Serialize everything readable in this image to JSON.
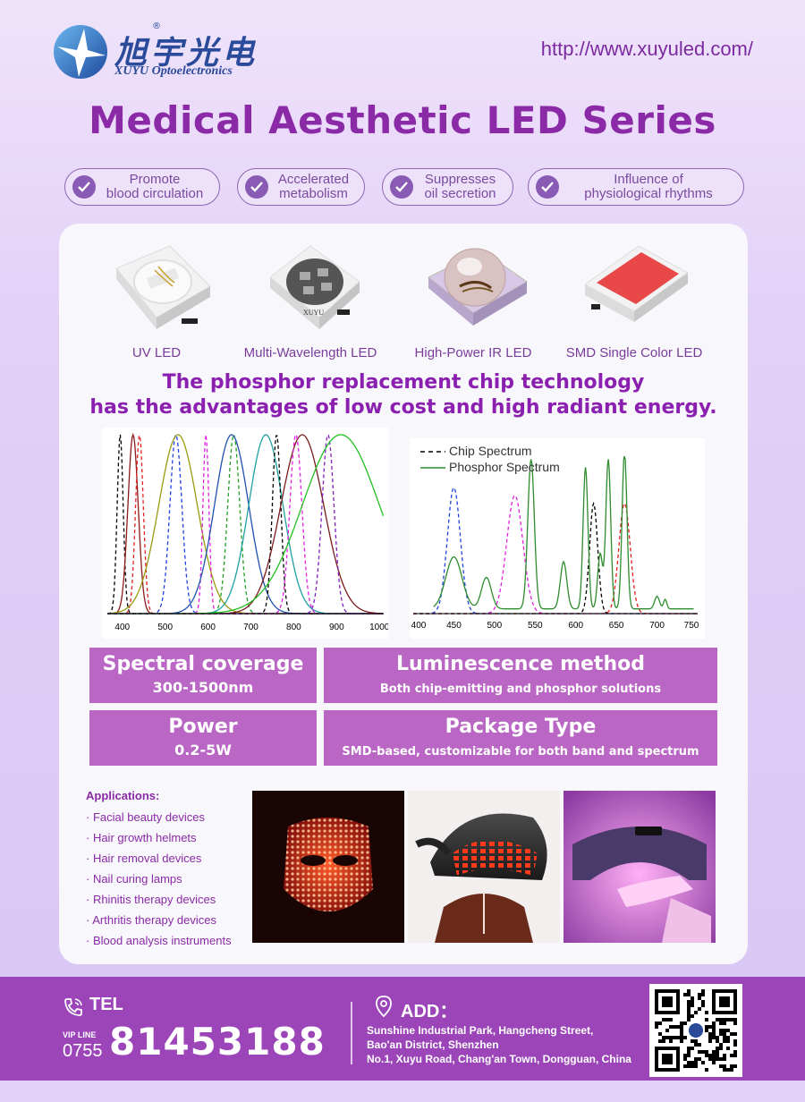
{
  "brand": {
    "cn_name": "旭宇光电",
    "en_name": "XUYU Optoelectronics",
    "reg_mark": "®"
  },
  "url": "http://www.xuyuled.com/",
  "title": "Medical Aesthetic LED Series",
  "benefits": [
    {
      "l1": "Promote",
      "l2": "blood circulation"
    },
    {
      "l1": "Accelerated",
      "l2": "metabolism"
    },
    {
      "l1": "Suppresses",
      "l2": "oil secretion"
    },
    {
      "l1": "Influence of",
      "l2": "physiological rhythms"
    }
  ],
  "products": [
    {
      "label": "UV LED"
    },
    {
      "label": "Multi-Wavelength LED",
      "chip_text": "XUYU"
    },
    {
      "label": "High-Power IR LED"
    },
    {
      "label": "SMD Single Color LED"
    }
  ],
  "headline": {
    "line1": "The phosphor replacement chip technology",
    "line2": "has the advantages of low cost and high radiant energy."
  },
  "chart_data": [
    {
      "type": "line",
      "x_ticks": [
        "400",
        "500",
        "600",
        "700",
        "800",
        "900",
        "1000"
      ],
      "xlim": [
        365,
        1010
      ],
      "series": [
        {
          "style": "dashed",
          "color": "#000000",
          "peak": 395,
          "width": 7
        },
        {
          "style": "solid",
          "color": "#8b1a1a",
          "peak": 425,
          "width": 12
        },
        {
          "style": "dashed",
          "color": "#e02020",
          "peak": 440,
          "width": 9
        },
        {
          "style": "dashed",
          "color": "#2040e0",
          "peak": 525,
          "width": 14
        },
        {
          "style": "solid",
          "color": "#9a9a10",
          "peak": 530,
          "width": 45
        },
        {
          "style": "dashed",
          "color": "#e020e0",
          "peak": 595,
          "width": 7
        },
        {
          "style": "dashed",
          "color": "#20a020",
          "peak": 660,
          "width": 14
        },
        {
          "style": "solid",
          "color": "#2050b0",
          "peak": 655,
          "width": 40
        },
        {
          "style": "solid",
          "color": "#20a0a0",
          "peak": 735,
          "width": 40
        },
        {
          "style": "dashed",
          "color": "#000000",
          "peak": 760,
          "width": 10
        },
        {
          "style": "solid",
          "color": "#7a1a1a",
          "peak": 820,
          "width": 50
        },
        {
          "style": "dashed",
          "color": "#e020e0",
          "peak": 805,
          "width": 14
        },
        {
          "style": "dashed",
          "color": "#8020c0",
          "peak": 880,
          "width": 14
        },
        {
          "style": "solid",
          "color": "#20c020",
          "peak": 910,
          "width": 90
        }
      ]
    },
    {
      "type": "line",
      "x_ticks": [
        "400",
        "450",
        "500",
        "550",
        "600",
        "650",
        "700",
        "750"
      ],
      "xlim": [
        400,
        750
      ],
      "legend": [
        {
          "name": "Chip Spectrum",
          "style": "dashed"
        },
        {
          "name": "Phosphor Spectrum",
          "style": "solid"
        }
      ],
      "series": [
        {
          "style": "dashed",
          "color": "#2040e0",
          "peak": 450,
          "width": 8,
          "height": 0.8
        },
        {
          "style": "dashed",
          "color": "#e020e0",
          "peak": 525,
          "width": 10,
          "height": 0.75
        },
        {
          "style": "dashed",
          "color": "#000000",
          "peak": 622,
          "width": 5,
          "height": 0.7
        },
        {
          "style": "dashed",
          "color": "#e02020",
          "peak": 660,
          "width": 7,
          "height": 0.7
        }
      ],
      "phosphor_color": "#2e8b2e"
    }
  ],
  "specs": [
    {
      "heading": "Spectral coverage",
      "value": "300-1500nm"
    },
    {
      "heading": "Luminescence method",
      "value": "Both chip-emitting and phosphor solutions"
    },
    {
      "heading": "Power",
      "value": "0.2-5W"
    },
    {
      "heading": "Package Type",
      "value": "SMD-based, customizable for both band and spectrum"
    }
  ],
  "applications": {
    "title": "Applications:",
    "items": [
      "· Facial beauty devices",
      "· Hair growth helmets",
      "· Hair removal devices",
      "· Nail curing lamps",
      "· Rhinitis therapy devices",
      "· Arthritis therapy devices",
      "· Blood analysis instruments"
    ]
  },
  "footer": {
    "tel_label": "TEL",
    "vip_label": "VIP LINE",
    "area_code": "0755",
    "phone": "81453188",
    "add_label": "ADD：",
    "address": [
      "Sunshine Industrial Park, Hangcheng Street,",
      "Bao'an District, Shenzhen",
      "No.1, Xuyu Road, Chang'an Town, Dongguan, China"
    ]
  },
  "colors": {
    "accent": "#8a2aa6",
    "spec_bg": "#b966c4",
    "footer_bg": "#9b45b8"
  }
}
